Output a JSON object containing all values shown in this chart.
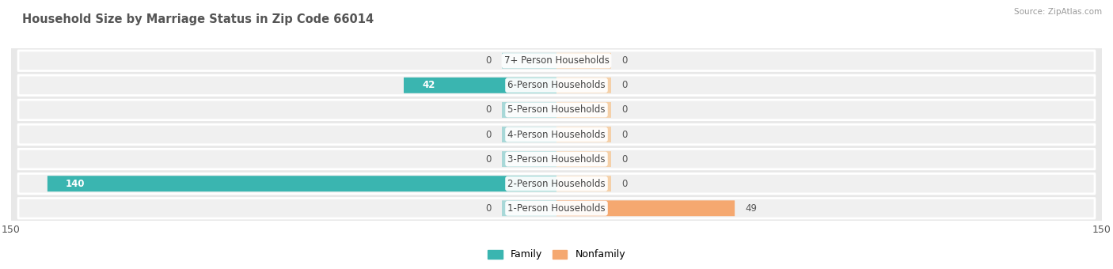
{
  "title": "Household Size by Marriage Status in Zip Code 66014",
  "source": "Source: ZipAtlas.com",
  "categories": [
    "7+ Person Households",
    "6-Person Households",
    "5-Person Households",
    "4-Person Households",
    "3-Person Households",
    "2-Person Households",
    "1-Person Households"
  ],
  "family_values": [
    0,
    42,
    0,
    0,
    0,
    140,
    0
  ],
  "nonfamily_values": [
    0,
    0,
    0,
    0,
    0,
    0,
    49
  ],
  "family_color": "#3ab5b0",
  "nonfamily_color": "#f5a870",
  "family_color_small": "#a8d8d8",
  "nonfamily_color_small": "#f5d0a8",
  "xlim": [
    -150,
    150
  ],
  "bar_height": 0.6,
  "bg_color": "#e8e8e8",
  "row_bg_color": "#f0f0f0",
  "label_fontsize": 8.5,
  "title_fontsize": 10.5,
  "value_fontsize": 8.5,
  "stub_size": 15
}
